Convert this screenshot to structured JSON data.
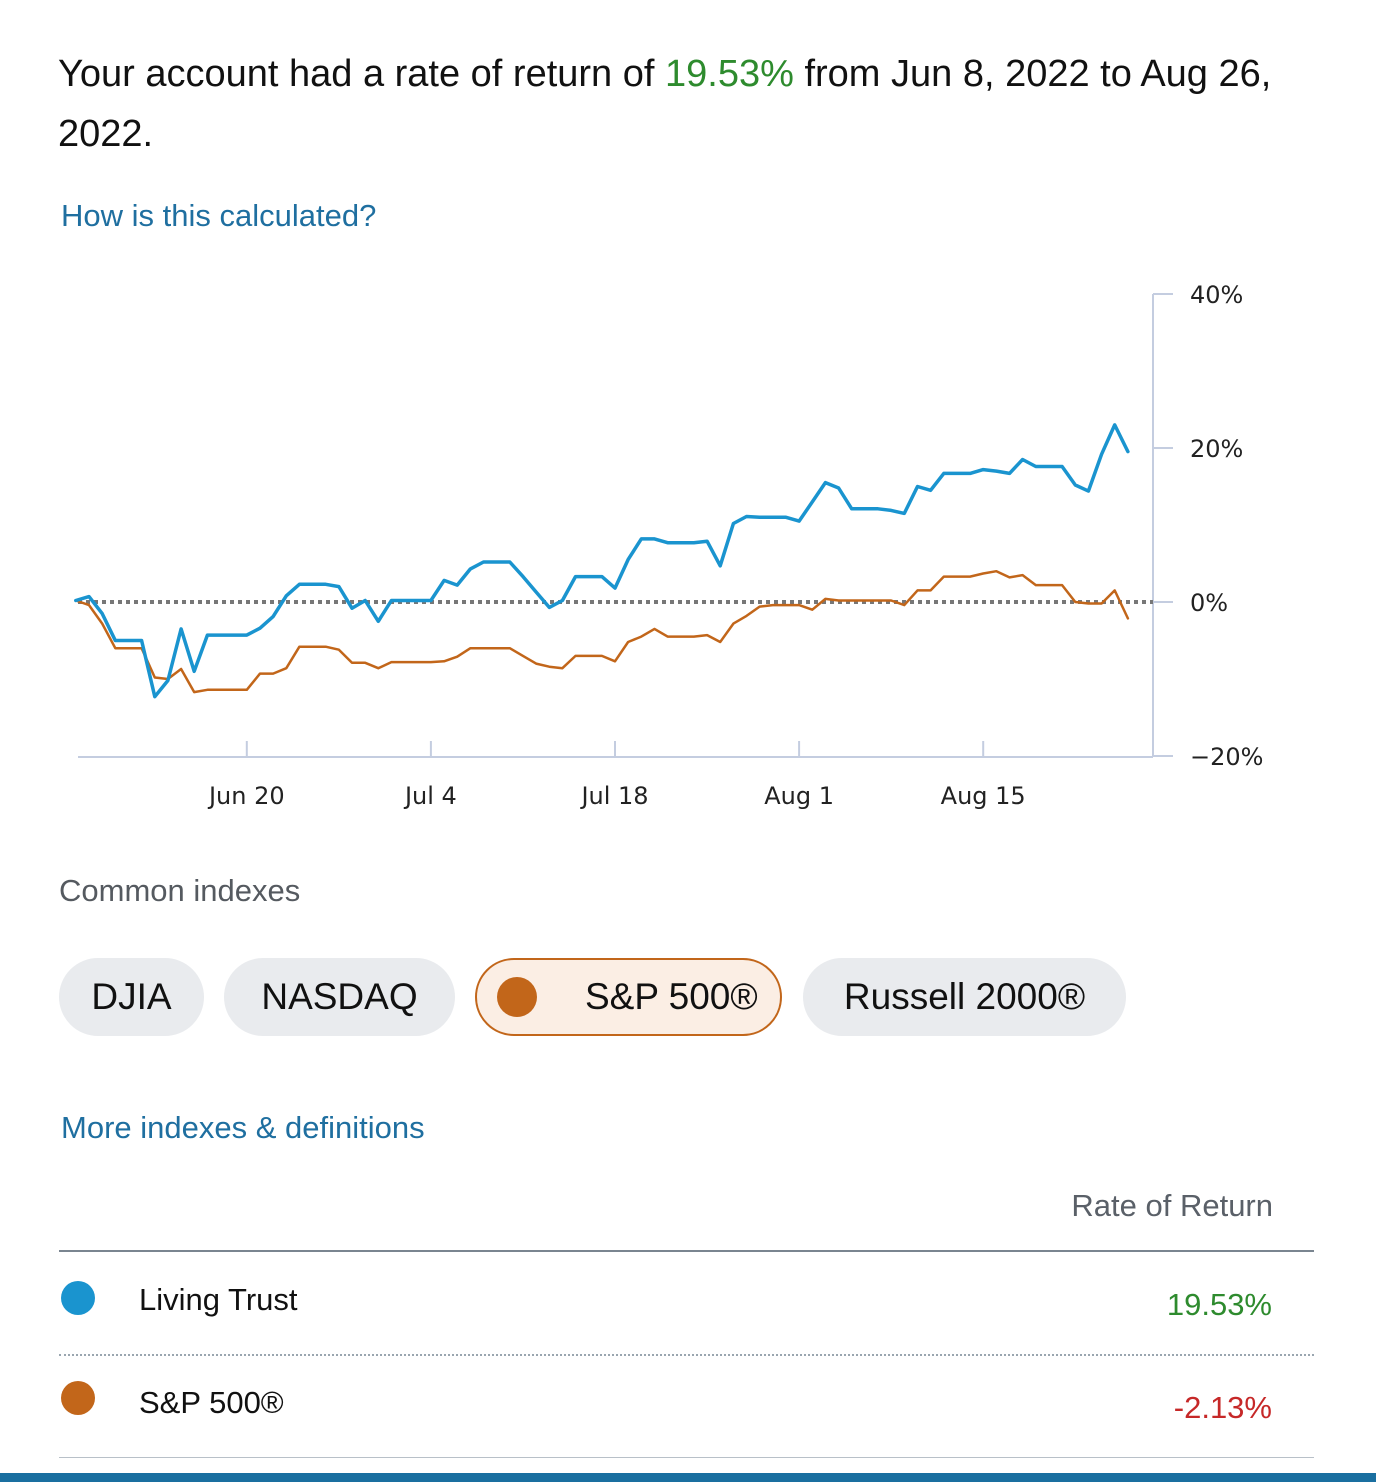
{
  "summary": {
    "prefix": "Your account had a rate of return of ",
    "rate": "19.53%",
    "suffix": " from Jun 8, 2022 to Aug 26, 2022."
  },
  "links": {
    "how_calculated": "How is this calculated?",
    "more_indexes": "More indexes & definitions"
  },
  "colors": {
    "account": "#1a94cf",
    "index": "#c2661a",
    "positive": "#2e8b2e",
    "negative": "#c62828",
    "link": "#1f6fa0"
  },
  "chart_data": {
    "type": "line",
    "x_axis": {
      "start": "Jun 8, 2022",
      "end": "Aug 26, 2022",
      "ticks": [
        {
          "label": "Jun 20",
          "day": 12
        },
        {
          "label": "Jul 4",
          "day": 26
        },
        {
          "label": "Jul 18",
          "day": 40
        },
        {
          "label": "Aug 1",
          "day": 54
        },
        {
          "label": "Aug 15",
          "day": 68
        }
      ]
    },
    "y_axis": {
      "min": -20,
      "max": 40,
      "position": "right",
      "ticks": [
        {
          "label": "40%",
          "value": 40
        },
        {
          "label": "20%",
          "value": 20
        },
        {
          "label": "0%",
          "value": 0
        },
        {
          "label": "−20%",
          "value": -20
        }
      ]
    },
    "zero_line": "dotted",
    "series": [
      {
        "name": "Living Trust",
        "color": "#1a94cf",
        "points": [
          [
            -1,
            0.2
          ],
          [
            0,
            0.7
          ],
          [
            1,
            -1.5
          ],
          [
            2,
            -5
          ],
          [
            3,
            -5
          ],
          [
            4,
            -5
          ],
          [
            5,
            -12.3
          ],
          [
            6,
            -10.2
          ],
          [
            7,
            -3.5
          ],
          [
            8,
            -9
          ],
          [
            9,
            -4.3
          ],
          [
            10,
            -4.3
          ],
          [
            11,
            -4.3
          ],
          [
            12,
            -4.3
          ],
          [
            13,
            -3.4
          ],
          [
            14,
            -1.9
          ],
          [
            15,
            0.8
          ],
          [
            16,
            2.3
          ],
          [
            17,
            2.3
          ],
          [
            18,
            2.3
          ],
          [
            19,
            2
          ],
          [
            20,
            -0.8
          ],
          [
            21,
            0.2
          ],
          [
            22,
            -2.5
          ],
          [
            23,
            0.2
          ],
          [
            24,
            0.2
          ],
          [
            25,
            0.2
          ],
          [
            26,
            0.2
          ],
          [
            27,
            2.8
          ],
          [
            28,
            2.2
          ],
          [
            29,
            4.3
          ],
          [
            30,
            5.2
          ],
          [
            31,
            5.2
          ],
          [
            32,
            5.2
          ],
          [
            33,
            3.3
          ],
          [
            34,
            1.3
          ],
          [
            35,
            -0.7
          ],
          [
            36,
            0.2
          ],
          [
            37,
            3.3
          ],
          [
            38,
            3.3
          ],
          [
            39,
            3.3
          ],
          [
            40,
            1.8
          ],
          [
            41,
            5.5
          ],
          [
            42,
            8.2
          ],
          [
            43,
            8.2
          ],
          [
            44,
            7.7
          ],
          [
            45,
            7.7
          ],
          [
            46,
            7.7
          ],
          [
            47,
            7.9
          ],
          [
            48,
            4.7
          ],
          [
            49,
            10.2
          ],
          [
            50,
            11.1
          ],
          [
            51,
            11
          ],
          [
            52,
            11
          ],
          [
            53,
            11
          ],
          [
            54,
            10.5
          ],
          [
            55,
            13
          ],
          [
            56,
            15.5
          ],
          [
            57,
            14.8
          ],
          [
            58,
            12.1
          ],
          [
            59,
            12.1
          ],
          [
            60,
            12.1
          ],
          [
            61,
            11.9
          ],
          [
            62,
            11.5
          ],
          [
            63,
            15
          ],
          [
            64,
            14.5
          ],
          [
            65,
            16.7
          ],
          [
            66,
            16.7
          ],
          [
            67,
            16.7
          ],
          [
            68,
            17.2
          ],
          [
            69,
            17
          ],
          [
            70,
            16.7
          ],
          [
            71,
            18.5
          ],
          [
            72,
            17.6
          ],
          [
            73,
            17.6
          ],
          [
            74,
            17.6
          ],
          [
            75,
            15.2
          ],
          [
            76,
            14.4
          ],
          [
            77,
            19.2
          ],
          [
            78,
            23
          ],
          [
            79,
            19.53
          ]
        ]
      },
      {
        "name": "S&P 500®",
        "color": "#c2661a",
        "points": [
          [
            -1,
            0.2
          ],
          [
            0,
            -0.4
          ],
          [
            1,
            -2.8
          ],
          [
            2,
            -6
          ],
          [
            3,
            -6
          ],
          [
            4,
            -6
          ],
          [
            5,
            -9.8
          ],
          [
            6,
            -10
          ],
          [
            7,
            -8.7
          ],
          [
            8,
            -11.7
          ],
          [
            9,
            -11.4
          ],
          [
            10,
            -11.4
          ],
          [
            11,
            -11.4
          ],
          [
            12,
            -11.4
          ],
          [
            13,
            -9.3
          ],
          [
            14,
            -9.3
          ],
          [
            15,
            -8.6
          ],
          [
            16,
            -5.8
          ],
          [
            17,
            -5.8
          ],
          [
            18,
            -5.8
          ],
          [
            19,
            -6.2
          ],
          [
            20,
            -7.9
          ],
          [
            21,
            -7.9
          ],
          [
            22,
            -8.6
          ],
          [
            23,
            -7.8
          ],
          [
            24,
            -7.8
          ],
          [
            25,
            -7.8
          ],
          [
            26,
            -7.8
          ],
          [
            27,
            -7.7
          ],
          [
            28,
            -7.1
          ],
          [
            29,
            -6
          ],
          [
            30,
            -6
          ],
          [
            31,
            -6
          ],
          [
            32,
            -6
          ],
          [
            33,
            -7
          ],
          [
            34,
            -8
          ],
          [
            35,
            -8.4
          ],
          [
            36,
            -8.6
          ],
          [
            37,
            -7
          ],
          [
            38,
            -7
          ],
          [
            39,
            -7
          ],
          [
            40,
            -7.7
          ],
          [
            41,
            -5.2
          ],
          [
            42,
            -4.5
          ],
          [
            43,
            -3.5
          ],
          [
            44,
            -4.5
          ],
          [
            45,
            -4.5
          ],
          [
            46,
            -4.5
          ],
          [
            47,
            -4.3
          ],
          [
            48,
            -5.2
          ],
          [
            49,
            -2.8
          ],
          [
            50,
            -1.8
          ],
          [
            51,
            -0.6
          ],
          [
            52,
            -0.4
          ],
          [
            53,
            -0.4
          ],
          [
            54,
            -0.4
          ],
          [
            55,
            -1
          ],
          [
            56,
            0.4
          ],
          [
            57,
            0.2
          ],
          [
            58,
            0.2
          ],
          [
            59,
            0.2
          ],
          [
            60,
            0.2
          ],
          [
            61,
            0.2
          ],
          [
            62,
            -0.4
          ],
          [
            63,
            1.5
          ],
          [
            64,
            1.5
          ],
          [
            65,
            3.3
          ],
          [
            66,
            3.3
          ],
          [
            67,
            3.3
          ],
          [
            68,
            3.7
          ],
          [
            69,
            4
          ],
          [
            70,
            3.2
          ],
          [
            71,
            3.5
          ],
          [
            72,
            2.2
          ],
          [
            73,
            2.2
          ],
          [
            74,
            2.2
          ],
          [
            75,
            0
          ],
          [
            76,
            -0.2
          ],
          [
            77,
            -0.2
          ],
          [
            78,
            1.5
          ],
          [
            79,
            -2.13
          ]
        ]
      }
    ]
  },
  "indexes": {
    "title": "Common indexes",
    "items": [
      {
        "label": "DJIA",
        "active": false
      },
      {
        "label": "NASDAQ",
        "active": false
      },
      {
        "label": "S&P 500®",
        "active": true
      },
      {
        "label": "Russell 2000®",
        "active": false
      }
    ]
  },
  "table": {
    "column_header": "Rate of Return",
    "rows": [
      {
        "label": "Living Trust",
        "value": "19.53%",
        "color": "#1a94cf",
        "sign": "positive"
      },
      {
        "label": "S&P 500®",
        "value": "-2.13%",
        "color": "#c2661a",
        "sign": "negative"
      }
    ]
  }
}
